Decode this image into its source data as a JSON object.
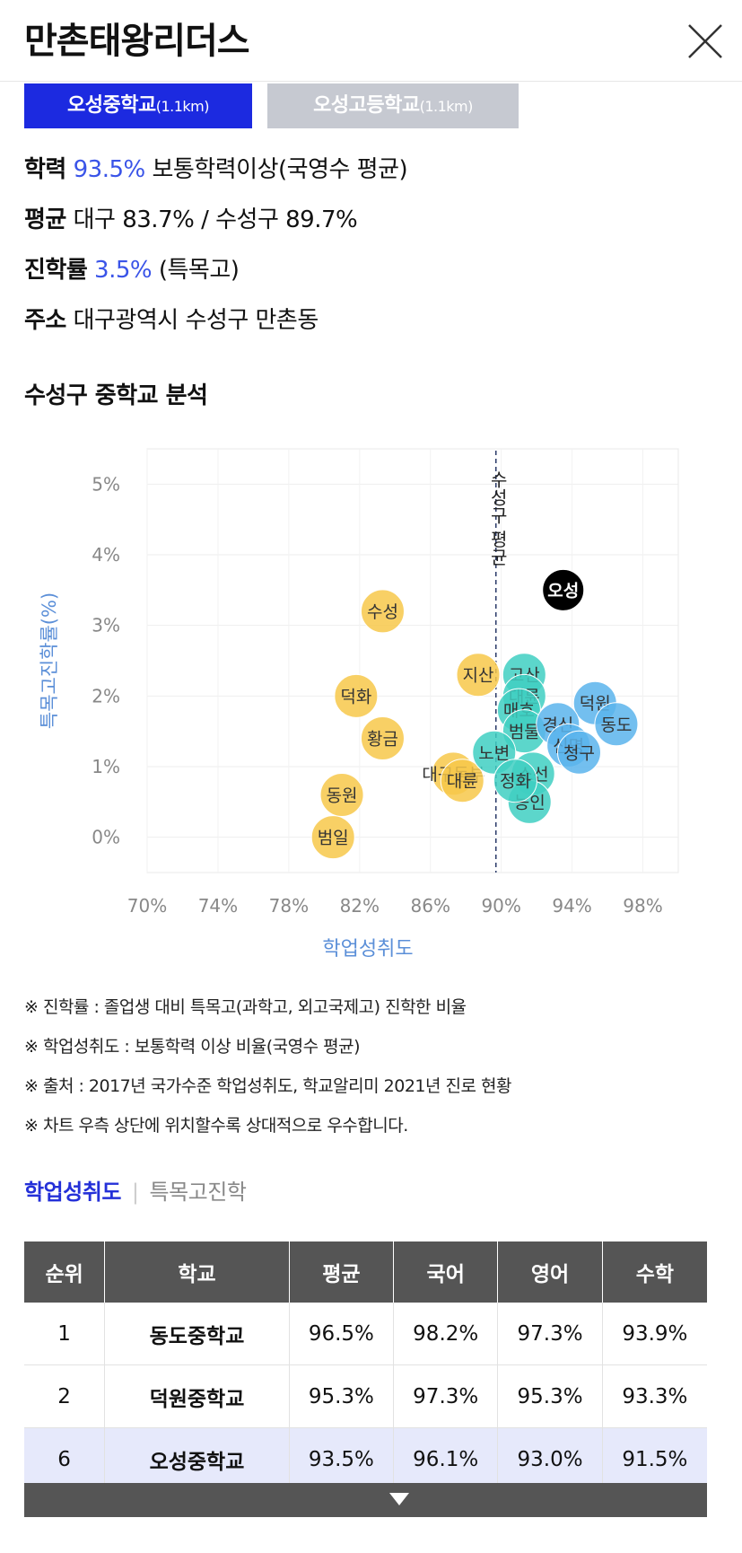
{
  "header": {
    "title": "만촌태왕리더스"
  },
  "school_tabs": [
    {
      "name": "오성중학교",
      "distance": "(1.1km)",
      "active": true
    },
    {
      "name": "오성고등학교",
      "distance": "(1.1km)",
      "active": false
    }
  ],
  "info": {
    "academic_label": "학력",
    "academic_value": "93.5%",
    "academic_desc": "보통학력이상(국영수 평균)",
    "average_label": "평균",
    "average_value": "대구 83.7% / 수성구 89.7%",
    "advance_label": "진학률",
    "advance_value": "3.5%",
    "advance_desc": "(특목고)",
    "address_label": "주소",
    "address_value": "대구광역시 수성구 만촌동"
  },
  "section_title": "수성구 중학교 분석",
  "chart_data": {
    "type": "scatter",
    "xlabel": "학업성취도",
    "ylabel": "특목고진학률(%)",
    "xlim": [
      70,
      100
    ],
    "ylim": [
      -0.5,
      5.5
    ],
    "xticks": [
      "70%",
      "74%",
      "78%",
      "82%",
      "86%",
      "90%",
      "94%",
      "98%"
    ],
    "xtick_values": [
      70,
      74,
      78,
      82,
      86,
      90,
      94,
      98
    ],
    "yticks": [
      "0%",
      "1%",
      "2%",
      "3%",
      "4%",
      "5%"
    ],
    "ytick_values": [
      0,
      1,
      2,
      3,
      4,
      5
    ],
    "reference_line": {
      "x": 89.7,
      "label": "수성구 평균"
    },
    "colors": {
      "yellow": "#f7c84a",
      "teal": "#3fcfc2",
      "blue": "#5ab4ec",
      "highlight": "#000000",
      "axis_label": "#5b8fd8"
    },
    "points": [
      {
        "label": "수성",
        "x": 83.3,
        "y": 3.2,
        "color": "yellow"
      },
      {
        "label": "덕화",
        "x": 81.8,
        "y": 2.0,
        "color": "yellow"
      },
      {
        "label": "황금",
        "x": 83.3,
        "y": 1.4,
        "color": "yellow"
      },
      {
        "label": "동원",
        "x": 81.0,
        "y": 0.6,
        "color": "yellow"
      },
      {
        "label": "범일",
        "x": 80.5,
        "y": 0.0,
        "color": "yellow"
      },
      {
        "label": "지산",
        "x": 88.7,
        "y": 2.3,
        "color": "yellow"
      },
      {
        "label": "대구동부",
        "x": 87.3,
        "y": 0.9,
        "color": "yellow"
      },
      {
        "label": "대륜",
        "x": 87.8,
        "y": 0.8,
        "color": "yellow"
      },
      {
        "label": "고산",
        "x": 91.3,
        "y": 2.3,
        "color": "teal"
      },
      {
        "label": "대륜",
        "x": 91.3,
        "y": 2.0,
        "color": "teal"
      },
      {
        "label": "매호",
        "x": 91.0,
        "y": 1.8,
        "color": "teal"
      },
      {
        "label": "범물",
        "x": 91.3,
        "y": 1.5,
        "color": "teal"
      },
      {
        "label": "노변",
        "x": 89.6,
        "y": 1.2,
        "color": "teal"
      },
      {
        "label": "소선",
        "x": 91.8,
        "y": 0.9,
        "color": "teal"
      },
      {
        "label": "능인",
        "x": 91.6,
        "y": 0.5,
        "color": "teal"
      },
      {
        "label": "정화",
        "x": 90.8,
        "y": 0.8,
        "color": "teal"
      },
      {
        "label": "덕원",
        "x": 95.3,
        "y": 1.9,
        "color": "blue"
      },
      {
        "label": "동도",
        "x": 96.5,
        "y": 1.6,
        "color": "blue"
      },
      {
        "label": "경신",
        "x": 93.2,
        "y": 1.6,
        "color": "blue"
      },
      {
        "label": "신명",
        "x": 93.8,
        "y": 1.3,
        "color": "blue"
      },
      {
        "label": "청구",
        "x": 94.4,
        "y": 1.2,
        "color": "blue"
      },
      {
        "label": "오성",
        "x": 93.5,
        "y": 3.5,
        "color": "highlight"
      }
    ]
  },
  "notes": [
    "※ 진학률 : 졸업생 대비 특목고(과학고, 외고국제고) 진학한 비율",
    "※ 학업성취도 : 보통학력 이상 비율(국영수 평균)",
    "※ 출처 : 2017년 국가수준 학업성취도, 학교알리미 2021년 진로 현황",
    "※ 차트 우측 상단에 위치할수록 상대적으로 우수합니다."
  ],
  "rank_tabs": {
    "active": "학업성취도",
    "inactive": "특목고진학"
  },
  "table": {
    "headers": [
      "순위",
      "학교",
      "평균",
      "국어",
      "영어",
      "수학"
    ],
    "rows": [
      [
        "1",
        "동도중학교",
        "96.5%",
        "98.2%",
        "97.3%",
        "93.9%"
      ],
      [
        "2",
        "덕원중학교",
        "95.3%",
        "97.3%",
        "95.3%",
        "93.3%"
      ],
      [
        "6",
        "오성중학교",
        "93.5%",
        "96.1%",
        "93.0%",
        "91.5%"
      ]
    ]
  }
}
